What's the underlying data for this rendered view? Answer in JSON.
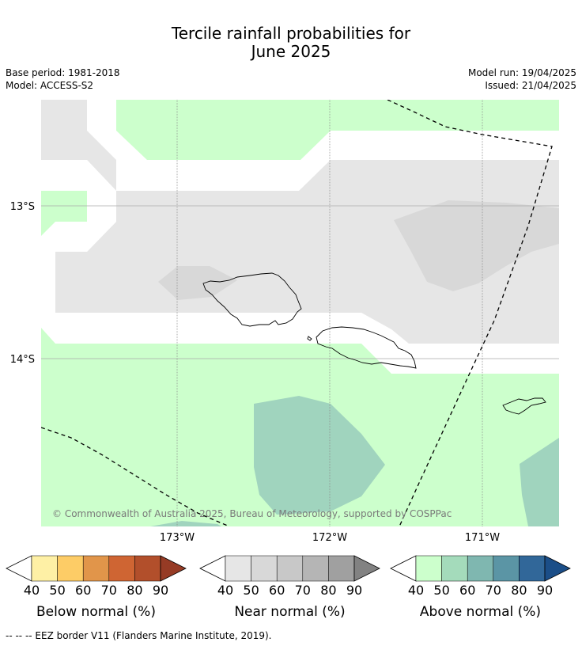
{
  "title_line1": "Tercile rainfall probabilities for",
  "title_line2": "June 2025",
  "base_period": "Base period: 1981-2018",
  "model": "Model: ACCESS-S2",
  "model_run": "Model run: 19/04/2025",
  "issued": "Issued: 21/04/2025",
  "lat_labels": [
    "13°S",
    "14°S"
  ],
  "lon_labels": [
    "173°W",
    "172°W",
    "171°W"
  ],
  "copyright": "© Commonwealth of Australia 2025, Bureau of Meteorology, supported by COSPPac",
  "colorbars": [
    {
      "title": "Below normal (%)",
      "ticks": [
        "40",
        "50",
        "60",
        "70",
        "80",
        "90"
      ],
      "colors": [
        "#fef0a5",
        "#fdcc66",
        "#e1954a",
        "#cf6533",
        "#b24f2b",
        "#963b25"
      ]
    },
    {
      "title": "Near normal (%)",
      "ticks": [
        "40",
        "50",
        "60",
        "70",
        "80",
        "90"
      ],
      "colors": [
        "#e6e6e6",
        "#d8d8d8",
        "#c8c8c8",
        "#b5b5b5",
        "#a0a0a0",
        "#828282"
      ]
    },
    {
      "title": "Above normal (%)",
      "ticks": [
        "40",
        "50",
        "60",
        "70",
        "80",
        "90"
      ],
      "colors": [
        "#ccffcc",
        "#a4dbbb",
        "#7fb7b0",
        "#5b95a5",
        "#316799",
        "#1b4e88"
      ]
    }
  ],
  "footer": "-- -- -- EEZ border V11 (Flanders Marine Institute, 2019)."
}
